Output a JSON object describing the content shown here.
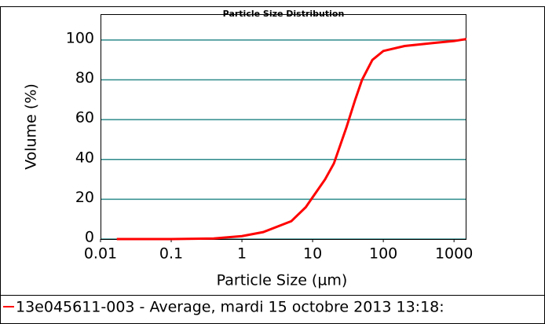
{
  "chart_data": {
    "type": "line",
    "title": "Particle Size Distribution",
    "xlabel": "Particle Size (µm)",
    "ylabel": "Volume (%)",
    "x_scale": "log",
    "x": [
      0.017,
      0.1,
      0.4,
      1,
      2,
      5,
      8,
      10,
      15,
      20,
      30,
      40,
      50,
      70,
      100,
      200,
      500,
      1000,
      1500
    ],
    "series": [
      {
        "name": "13e045611-003 - Average, mardi 15 octobre 2013 13:18:",
        "color": "#ff0000",
        "values": [
          0,
          0,
          0.3,
          1.5,
          3.5,
          9,
          16,
          21,
          30,
          38,
          56,
          70,
          80,
          90,
          94.5,
          97,
          98.5,
          99.5,
          100.5
        ]
      }
    ],
    "xlim": [
      0.01,
      1500
    ],
    "ylim": [
      0,
      113
    ],
    "xticks": [
      0.01,
      0.1,
      1,
      10,
      100,
      1000
    ],
    "yticks": [
      0,
      20,
      40,
      60,
      80,
      100
    ],
    "grid": true,
    "grid_color": "#2e8b8b"
  }
}
